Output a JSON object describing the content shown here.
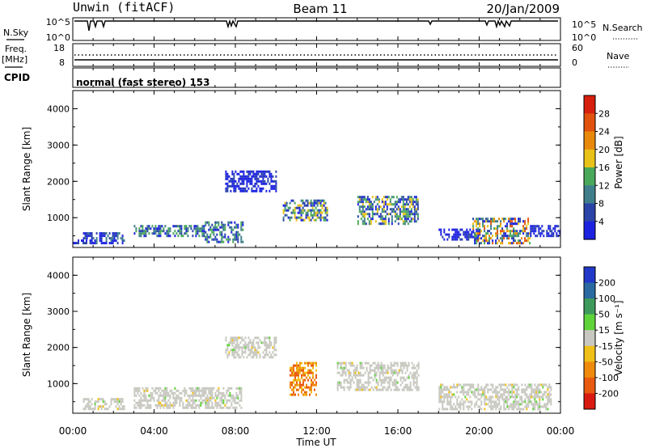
{
  "header": {
    "site": "Unwin (fitACF)",
    "beam": "Beam 11",
    "date": "20/Jan/2009"
  },
  "sky_panel": {
    "left_label": "N.Sky",
    "left_ticks": [
      "10^5",
      "10^0"
    ],
    "right_ticks": [
      "10^5",
      "10^0"
    ],
    "right_label": "N.Search"
  },
  "freq_panel": {
    "left_label_top": "Freq.",
    "left_label_unit": "[MHz]",
    "left_ticks": [
      "18",
      "8"
    ],
    "right_ticks": [
      "60",
      "0"
    ],
    "right_label": "Nave"
  },
  "cpid": {
    "label": "CPID",
    "text": "normal (fast stereo) 153"
  },
  "x_axis": {
    "label": "Time UT",
    "ticks": [
      "00:00",
      "04:00",
      "08:00",
      "12:00",
      "16:00",
      "20:00",
      "00:00"
    ]
  },
  "chart_data": [
    {
      "type": "heatmap",
      "title": "",
      "ylabel": "Slant Range [km]",
      "y_ticks": [
        "1000",
        "2000",
        "3000",
        "4000"
      ],
      "ylim": [
        180,
        4500
      ],
      "xlim_hours": [
        0,
        24
      ],
      "colorbar": {
        "label": "Power [dB]",
        "ticks": [
          "4",
          "8",
          "12",
          "16",
          "20",
          "24",
          "28"
        ],
        "colors": [
          "#1c22e0",
          "#2a44a8",
          "#3f7e8a",
          "#4aa85a",
          "#e8c219",
          "#e8890b",
          "#e0520d",
          "#d61f0c"
        ]
      },
      "echo_regions": [
        {
          "start": "00:00",
          "end": "00:40",
          "range_km": [
            300,
            400
          ],
          "level": "weak"
        },
        {
          "start": "00:30",
          "end": "02:30",
          "range_km": [
            300,
            600
          ],
          "level": "weak-moderate"
        },
        {
          "start": "03:00",
          "end": "06:30",
          "range_km": [
            500,
            800
          ],
          "level": "moderate"
        },
        {
          "start": "06:30",
          "end": "08:20",
          "range_km": [
            300,
            900
          ],
          "level": "moderate"
        },
        {
          "start": "07:30",
          "end": "10:00",
          "range_km": [
            1700,
            2300
          ],
          "level": "weak"
        },
        {
          "start": "10:20",
          "end": "12:30",
          "range_km": [
            900,
            1500
          ],
          "level": "moderate-strong"
        },
        {
          "start": "14:00",
          "end": "17:00",
          "range_km": [
            800,
            1600
          ],
          "level": "moderate-strong"
        },
        {
          "start": "18:00",
          "end": "20:00",
          "range_km": [
            400,
            700
          ],
          "level": "weak"
        },
        {
          "start": "19:40",
          "end": "22:30",
          "range_km": [
            300,
            1000
          ],
          "level": "strong"
        },
        {
          "start": "22:30",
          "end": "24:00",
          "range_km": [
            500,
            800
          ],
          "level": "weak"
        }
      ]
    },
    {
      "type": "heatmap",
      "title": "",
      "ylabel": "Slant Range [km]",
      "y_ticks": [
        "1000",
        "2000",
        "3000",
        "4000"
      ],
      "ylim": [
        180,
        4500
      ],
      "xlim_hours": [
        0,
        24
      ],
      "colorbar": {
        "label": "Velocity [m s⁻¹]",
        "ticks": [
          "200",
          "100",
          "50",
          "15",
          "-15",
          "-50",
          "-100",
          "-200"
        ],
        "colors": [
          "#2238c8",
          "#2a6aa0",
          "#3e9a5c",
          "#5fd33a",
          "#c8c8c0",
          "#f0c018",
          "#f08a0c",
          "#e85a10",
          "#d81a10"
        ]
      },
      "echo_regions": [
        {
          "start": "00:30",
          "end": "02:30",
          "range_km": [
            300,
            600
          ],
          "level": "low velocity (gray)"
        },
        {
          "start": "03:00",
          "end": "08:20",
          "range_km": [
            300,
            900
          ],
          "level": "low velocity (gray)"
        },
        {
          "start": "07:30",
          "end": "10:00",
          "range_km": [
            1700,
            2300
          ],
          "level": "low velocity (gray)"
        },
        {
          "start": "10:40",
          "end": "12:00",
          "range_km": [
            700,
            1600
          ],
          "level": "negative (orange)"
        },
        {
          "start": "13:00",
          "end": "17:00",
          "range_km": [
            800,
            1600
          ],
          "level": "low velocity (gray)"
        },
        {
          "start": "18:00",
          "end": "23:30",
          "range_km": [
            300,
            1000
          ],
          "level": "low velocity (gray)"
        }
      ]
    }
  ]
}
